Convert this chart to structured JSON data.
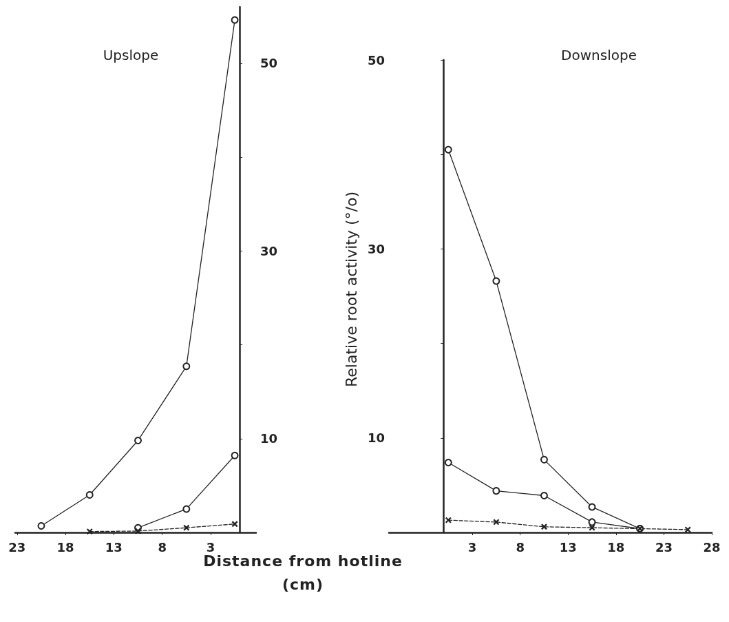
{
  "chart_data": [
    {
      "type": "line",
      "title": "Upslope",
      "xlabel": "Distance from hotline\n(cm)",
      "x": [
        20.5,
        15.5,
        10.5,
        5.5,
        0.5
      ],
      "xlim": [
        23.2,
        -1.7
      ],
      "xticks": [
        23,
        18,
        13,
        8,
        3
      ],
      "ylim": [
        0,
        56
      ],
      "yticks": [
        {
          "value": 0,
          "label": null
        },
        10,
        {
          "value": 20,
          "label": null
        },
        30,
        {
          "value": 40,
          "label": null
        },
        50
      ],
      "grid": false,
      "series": [
        {
          "color": "#222222",
          "marker": "circle",
          "line_style": "solid",
          "values": [
            0.7,
            4.0,
            9.8,
            17.7,
            54.6
          ]
        },
        {
          "color": "#222222",
          "marker": "circle",
          "line_style": "solid",
          "values": [
            null,
            null,
            0.5,
            2.5,
            8.2
          ]
        },
        {
          "color": "#222222",
          "marker": "cross",
          "line_style": "dashed",
          "values": [
            null,
            0.1,
            0.15,
            0.5,
            0.9
          ]
        }
      ]
    },
    {
      "type": "line",
      "title": "Downslope",
      "ylabel": "Relative root activity (°/o)",
      "x": [
        0.5,
        5.5,
        10.5,
        15.5,
        20.5,
        25.5
      ],
      "xlim": [
        -5.7,
        28
      ],
      "xticks": [
        3,
        8,
        13,
        18,
        23,
        28
      ],
      "ylim": [
        0,
        50
      ],
      "yticks": [
        10,
        {
          "value": 20,
          "label": null
        },
        30,
        {
          "value": 40,
          "label": null
        },
        50
      ],
      "grid": false,
      "series": [
        {
          "color": "#222222",
          "marker": "circle",
          "line_style": "solid",
          "values": [
            40.5,
            26.6,
            7.7,
            2.7,
            0.4,
            null
          ]
        },
        {
          "color": "#222222",
          "marker": "circle",
          "line_style": "solid",
          "values": [
            7.4,
            4.4,
            3.9,
            1.1,
            0.4,
            null
          ]
        },
        {
          "color": "#222222",
          "marker": "cross",
          "line_style": "dashed",
          "values": [
            1.3,
            1.1,
            0.6,
            0.5,
            0.4,
            0.3
          ]
        }
      ]
    }
  ]
}
